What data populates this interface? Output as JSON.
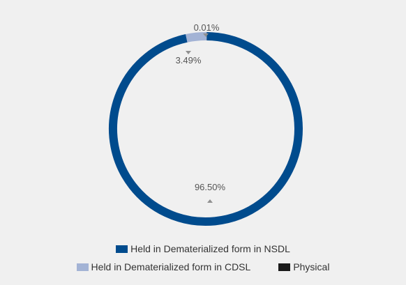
{
  "chart_data": {
    "type": "pie",
    "donut": true,
    "slices": [
      {
        "label": "Held in Dematerialized form in NSDL",
        "value": 96.5,
        "value_label": "96.50%",
        "color": "#004b8d"
      },
      {
        "label": "Held in Dematerialized form in CDSL",
        "value": 3.49,
        "value_label": "3.49%",
        "color": "#a3b3d5"
      },
      {
        "label": "Physical",
        "value": 0.01,
        "value_label": "0.01%",
        "color": "#1a1a1a"
      }
    ],
    "legend_position": "bottom"
  },
  "colors": {
    "background": "#f0f0f0",
    "label_text": "#555555",
    "label_marker": "#909090"
  }
}
